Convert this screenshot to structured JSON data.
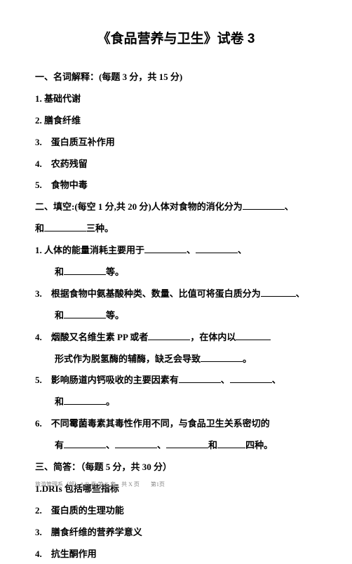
{
  "title": "《食品营养与卫生》试卷 3",
  "section1": {
    "header": "一、名词解释：(每题 3 分，共 15 分)",
    "items": [
      "1. 基础代谢",
      "2. 膳食纤维",
      "3.　蛋白质互补作用",
      "4.　农药残留",
      "5.　食物中毒"
    ]
  },
  "section2": {
    "header_prefix": "二、填空:(每空 1 分,共 20 分)人体对食物的消化分为",
    "header_suffix": "、",
    "line2_prefix": "和",
    "line2_suffix": "三种。",
    "q1_prefix": "1. 人体的能量消耗主要用于",
    "q1_suffix": "等。",
    "q3_prefix": "3.　根据食物中氨基酸种类、数量、比值可将蛋白质分为",
    "q3_suffix": "等。",
    "q4_prefix": "4.　烟酸又名维生素 PP 或者",
    "q4_mid": "，在体内以",
    "q4_line2": "形式作为脱氢酶的辅酶，缺乏会导致",
    "q4_end": "。",
    "q5_prefix": "5.　影响肠道内钙吸收的主要因素有",
    "q5_end": "。",
    "q6_prefix": "6.　不同霉菌毒素其毒性作用不同，与食品卫生关系密切的",
    "q6_line2_prefix": "有",
    "q6_suffix": "四种。"
  },
  "section3": {
    "header": "三、简答：（每题 5 分，共 30 分）",
    "items": [
      "1.DRIs 包括哪些指标",
      "2.　蛋白质的生理功能",
      "3.　膳食纤维的营养学意义",
      "4.　抗生酮作用"
    ]
  },
  "footer": "旅游管理系（部）A/B 卷 第 X 套　共 X 页　　第1页"
}
